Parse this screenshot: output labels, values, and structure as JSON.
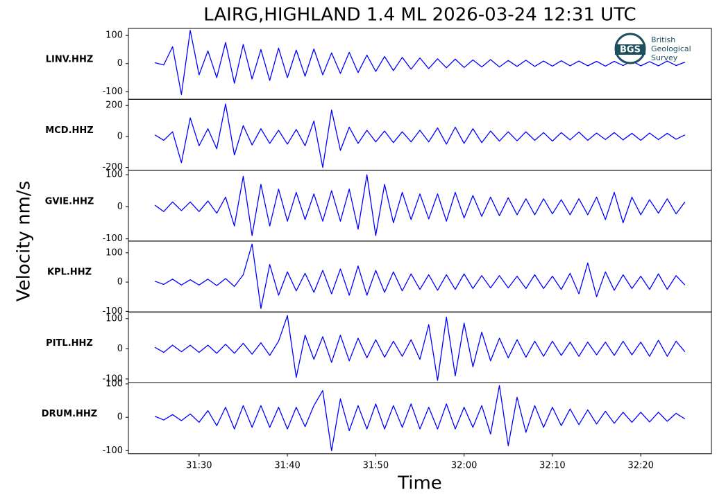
{
  "chart_data": {
    "type": "line",
    "title": "LAIRG,HIGHLAND 1.4 ML   2026-03-24 12:31 UTC",
    "x_label": "Time",
    "y_label": "Velocity nm/s",
    "logo": {
      "abbr": "BGS",
      "lines": [
        "British",
        "Geological",
        "Survey"
      ]
    },
    "color": "#0000ff",
    "xlim": [
      22,
      88
    ],
    "xticks": [
      {
        "value": 30,
        "label": "31:30"
      },
      {
        "value": 40,
        "label": "31:40"
      },
      {
        "value": 50,
        "label": "31:50"
      },
      {
        "value": 60,
        "label": "32:00"
      },
      {
        "value": 70,
        "label": "32:10"
      },
      {
        "value": 80,
        "label": "32:20"
      }
    ],
    "x": [
      25,
      26,
      27,
      28,
      29,
      30,
      31,
      32,
      33,
      34,
      35,
      36,
      37,
      38,
      39,
      40,
      41,
      42,
      43,
      44,
      45,
      46,
      47,
      48,
      49,
      50,
      51,
      52,
      53,
      54,
      55,
      56,
      57,
      58,
      59,
      60,
      61,
      62,
      63,
      64,
      65,
      66,
      67,
      68,
      69,
      70,
      71,
      72,
      73,
      74,
      75,
      76,
      77,
      78,
      79,
      80,
      81,
      82,
      83,
      84,
      85
    ],
    "panels": [
      {
        "name": "LINV.HHZ",
        "ylim": [
          -127,
          125
        ],
        "yticks": [
          -100,
          0,
          100
        ],
        "values": [
          3,
          -5,
          60,
          -110,
          118,
          -40,
          45,
          -50,
          75,
          -70,
          68,
          -55,
          50,
          -60,
          55,
          -50,
          48,
          -45,
          52,
          -40,
          38,
          -35,
          40,
          -32,
          30,
          -28,
          25,
          -25,
          22,
          -20,
          20,
          -18,
          17,
          -15,
          16,
          -14,
          13,
          -12,
          14,
          -12,
          11,
          -10,
          12,
          -10,
          9,
          -9,
          10,
          -8,
          9,
          -8,
          8,
          -9,
          8,
          -7,
          9,
          -8,
          7,
          -8,
          9,
          -7,
          5
        ]
      },
      {
        "name": "MCD.HHZ",
        "ylim": [
          -218,
          240
        ],
        "yticks": [
          -200,
          0,
          200
        ],
        "values": [
          10,
          -25,
          30,
          -170,
          120,
          -60,
          50,
          -80,
          210,
          -120,
          70,
          -55,
          50,
          -45,
          40,
          -50,
          45,
          -60,
          100,
          -200,
          170,
          -90,
          60,
          -45,
          40,
          -35,
          35,
          -40,
          30,
          -35,
          40,
          -35,
          55,
          -50,
          60,
          -45,
          50,
          -40,
          35,
          -30,
          30,
          -28,
          30,
          -25,
          25,
          -30,
          25,
          -22,
          28,
          -25,
          22,
          -20,
          25,
          -22,
          20,
          -25,
          22,
          -20,
          20,
          -18,
          10
        ]
      },
      {
        "name": "GVIE.HHZ",
        "ylim": [
          -107,
          114
        ],
        "yticks": [
          -100,
          0,
          100
        ],
        "values": [
          5,
          -15,
          15,
          -12,
          15,
          -15,
          18,
          -20,
          30,
          -60,
          95,
          -90,
          70,
          -60,
          55,
          -45,
          45,
          -40,
          40,
          -45,
          50,
          -45,
          55,
          -70,
          100,
          -90,
          70,
          -50,
          45,
          -40,
          40,
          -38,
          40,
          -45,
          45,
          -35,
          35,
          -30,
          30,
          -28,
          28,
          -25,
          25,
          -25,
          25,
          -22,
          22,
          -25,
          25,
          -25,
          30,
          -40,
          45,
          -50,
          30,
          -25,
          22,
          -20,
          25,
          -22,
          15
        ]
      },
      {
        "name": "KPL.HHZ",
        "ylim": [
          -102,
          140
        ],
        "yticks": [
          -100,
          0,
          100
        ],
        "values": [
          3,
          -8,
          10,
          -10,
          8,
          -10,
          10,
          -12,
          12,
          -15,
          25,
          130,
          -90,
          60,
          -45,
          35,
          -30,
          30,
          -35,
          40,
          -40,
          45,
          -45,
          55,
          -45,
          40,
          -35,
          35,
          -30,
          28,
          -25,
          25,
          -28,
          25,
          -25,
          28,
          -22,
          22,
          -20,
          22,
          -20,
          20,
          -22,
          25,
          -22,
          20,
          -25,
          30,
          -40,
          65,
          -50,
          35,
          -28,
          25,
          -22,
          20,
          -25,
          28,
          -25,
          22,
          -10
        ]
      },
      {
        "name": "PITL.HHZ",
        "ylim": [
          -113,
          122
        ],
        "yticks": [
          -100,
          0,
          100
        ],
        "values": [
          5,
          -12,
          12,
          -10,
          12,
          -12,
          12,
          -15,
          15,
          -15,
          18,
          -18,
          20,
          -22,
          25,
          110,
          -95,
          45,
          -35,
          40,
          -45,
          45,
          -40,
          35,
          -30,
          30,
          -28,
          25,
          -25,
          30,
          -35,
          80,
          -105,
          105,
          -90,
          85,
          -60,
          55,
          -40,
          35,
          -30,
          30,
          -28,
          25,
          -25,
          25,
          -22,
          22,
          -25,
          22,
          -20,
          22,
          -22,
          25,
          -20,
          22,
          -25,
          28,
          -25,
          25,
          -10
        ]
      },
      {
        "name": "DRUM.HHZ",
        "ylim": [
          -109,
          103
        ],
        "yticks": [
          -100,
          0,
          100
        ],
        "values": [
          3,
          -8,
          8,
          -10,
          10,
          -15,
          20,
          -25,
          30,
          -35,
          35,
          -30,
          35,
          -30,
          30,
          -35,
          30,
          -28,
          35,
          80,
          -100,
          55,
          -40,
          35,
          -35,
          40,
          -35,
          35,
          -30,
          40,
          -35,
          30,
          -35,
          40,
          -35,
          30,
          -30,
          35,
          -50,
          95,
          -85,
          60,
          -45,
          35,
          -30,
          30,
          -25,
          25,
          -22,
          22,
          -20,
          18,
          -18,
          15,
          -15,
          15,
          -14,
          15,
          -12,
          12,
          -5
        ]
      }
    ]
  }
}
